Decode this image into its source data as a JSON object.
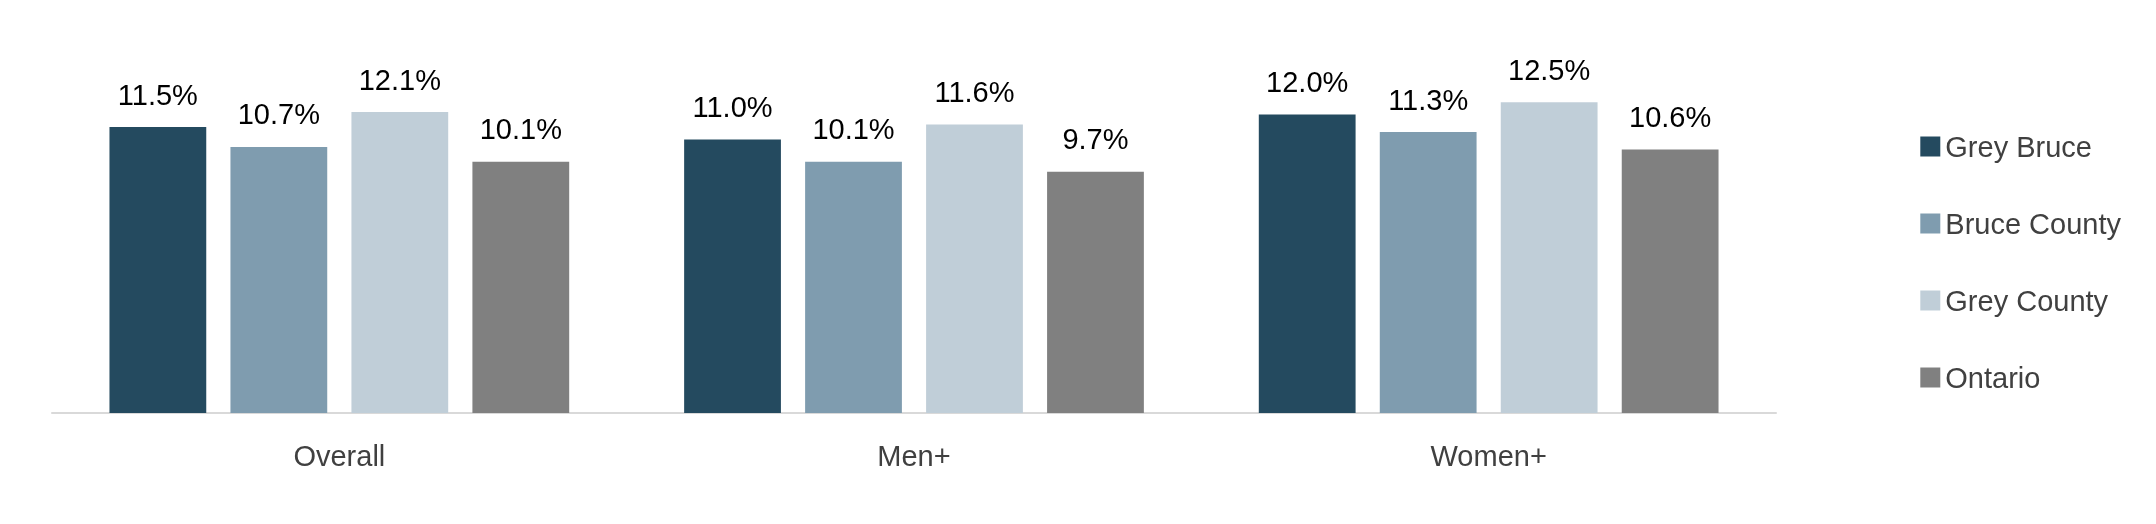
{
  "chart_data": {
    "type": "bar",
    "categories": [
      "Overall",
      "Men+",
      "Women+"
    ],
    "series": [
      {
        "name": "Grey Bruce",
        "color": "#244a5f",
        "values": [
          11.5,
          11.0,
          12.0
        ],
        "value_labels": [
          "11.5%",
          "11.0%",
          "12.0%"
        ]
      },
      {
        "name": "Bruce County",
        "color": "#7f9caf",
        "values": [
          10.7,
          10.1,
          11.3
        ],
        "value_labels": [
          "10.7%",
          "10.1%",
          "11.3%"
        ]
      },
      {
        "name": "Grey County",
        "color": "#c0ced8",
        "values": [
          12.1,
          11.6,
          12.5
        ],
        "value_labels": [
          "12.1%",
          "11.6%",
          "12.5%"
        ]
      },
      {
        "name": "Ontario",
        "color": "#808080",
        "values": [
          10.1,
          9.7,
          10.6
        ],
        "value_labels": [
          "10.1%",
          "9.7%",
          "10.6%"
        ]
      }
    ],
    "legend": "right",
    "grid": false,
    "tick_labels": "x"
  }
}
